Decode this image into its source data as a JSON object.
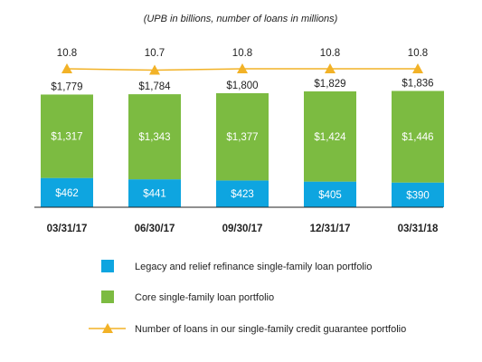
{
  "chart_data": {
    "type": "bar",
    "subtitle": "(UPB in billions, number of loans in millions)",
    "categories": [
      "03/31/17",
      "06/30/17",
      "09/30/17",
      "12/31/17",
      "03/31/18"
    ],
    "stacked": true,
    "series": [
      {
        "name": "Legacy and relief refinance single-family loan portfolio",
        "color": "#0ea5e0",
        "values": [
          462,
          441,
          423,
          405,
          390
        ],
        "labels": [
          "$462",
          "$441",
          "$423",
          "$405",
          "$390"
        ]
      },
      {
        "name": "Core single-family loan portfolio",
        "color": "#7cbb41",
        "values": [
          1317,
          1343,
          1377,
          1424,
          1446
        ],
        "labels": [
          "$1,317",
          "$1,343",
          "$1,377",
          "$1,424",
          "$1,446"
        ]
      }
    ],
    "totals": [
      1779,
      1784,
      1800,
      1829,
      1836
    ],
    "total_labels": [
      "$1,779",
      "$1,784",
      "$1,800",
      "$1,829",
      "$1,836"
    ],
    "line_series": {
      "name": "Number of loans in our single-family credit guarantee portfolio",
      "color": "#f2b227",
      "marker": "triangle",
      "values": [
        10.8,
        10.7,
        10.8,
        10.8,
        10.8
      ],
      "labels": [
        "10.8",
        "10.7",
        "10.8",
        "10.8",
        "10.8"
      ]
    },
    "grid": false,
    "legend_position": "bottom"
  }
}
